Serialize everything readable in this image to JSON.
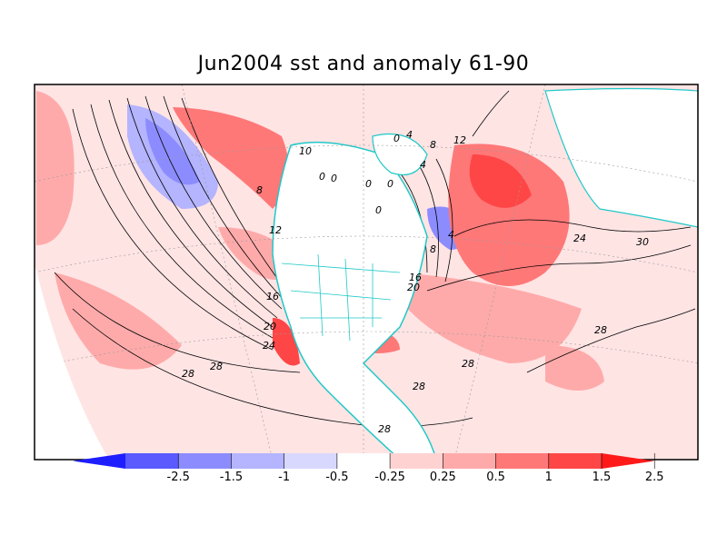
{
  "title": "Jun2004 sst and anomaly 61-90",
  "contour_labels": [
    "0",
    "0",
    "0",
    "0",
    "0",
    "0",
    "4",
    "4",
    "4",
    "8",
    "8",
    "8",
    "10",
    "12",
    "12",
    "16",
    "16",
    "20",
    "20",
    "24",
    "24",
    "28",
    "28",
    "28",
    "28",
    "28",
    "28",
    "30"
  ],
  "colorbar": {
    "ticks": [
      "-2.5",
      "-1.5",
      "-1",
      "-0.5",
      "-0.25",
      "0.25",
      "0.5",
      "1",
      "1.5",
      "2.5"
    ],
    "colors": [
      "#1e1eff",
      "#5a5aff",
      "#8c8cff",
      "#b4b4ff",
      "#d8d8ff",
      "#ffffff",
      "#ffd2d2",
      "#ffaaaa",
      "#ff7878",
      "#ff4646",
      "#ff1a1a"
    ]
  },
  "colors": {
    "land_outline": "#20c8c8",
    "frame": "#000000",
    "grid": "#999999"
  }
}
